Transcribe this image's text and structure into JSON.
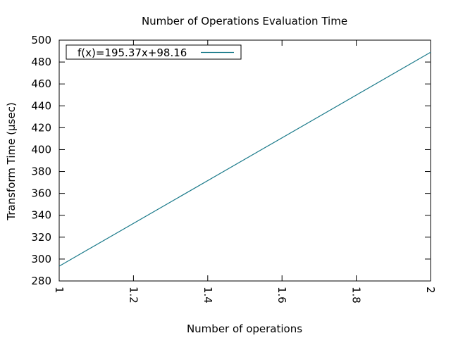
{
  "chart_data": {
    "type": "line",
    "title": "Number of Operations Evaluation Time",
    "xlabel": "Number of operations",
    "ylabel": "Transform Time (µsec)",
    "xlim": [
      1,
      2
    ],
    "ylim": [
      280,
      500
    ],
    "x_ticks": [
      1,
      1.2,
      1.4,
      1.6,
      1.8,
      2
    ],
    "x_tick_labels": [
      "1",
      "1.2",
      "1.4",
      "1.6",
      "1.8",
      "2"
    ],
    "y_ticks": [
      280,
      300,
      320,
      340,
      360,
      380,
      400,
      420,
      440,
      460,
      480,
      500
    ],
    "y_tick_labels": [
      "280",
      "300",
      "320",
      "340",
      "360",
      "380",
      "400",
      "420",
      "440",
      "460",
      "480",
      "500"
    ],
    "legend_position": "top-left",
    "grid": false,
    "series": [
      {
        "name": "f(x)=195.37x+98.16",
        "color": "#1a7a8a",
        "x": [
          1,
          2
        ],
        "y": [
          293.53,
          488.9
        ]
      }
    ]
  }
}
